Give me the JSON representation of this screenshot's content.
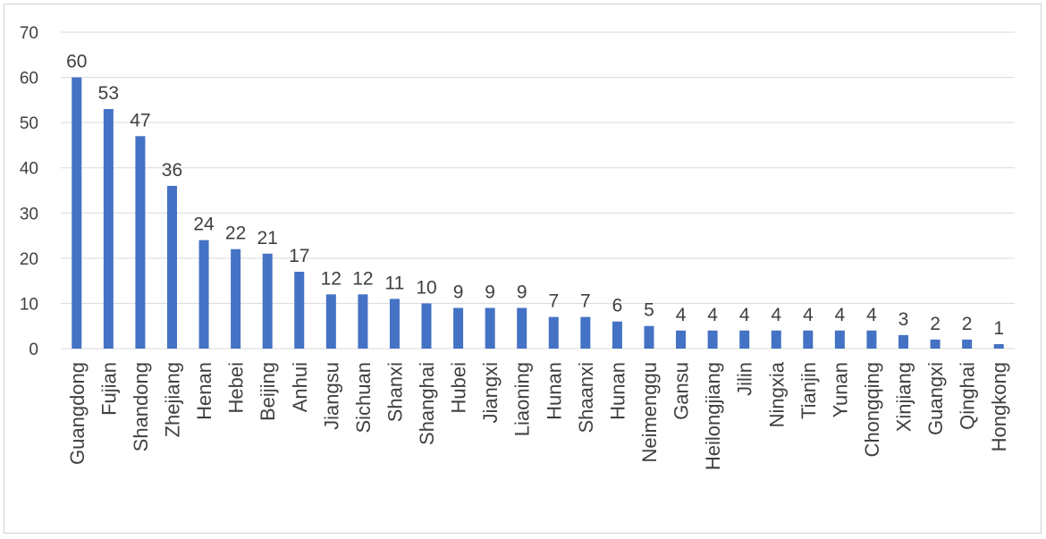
{
  "chart_data": {
    "type": "bar",
    "title": "",
    "xlabel": "",
    "ylabel": "",
    "ylim": [
      0,
      70
    ],
    "yticks": [
      0,
      10,
      20,
      30,
      40,
      50,
      60,
      70
    ],
    "grid": true,
    "legend": "none",
    "colors": {
      "bar": "#4472C4",
      "grid": "#d9d9d9",
      "text": "#404040"
    },
    "categories": [
      "Guangdong",
      "Fujian",
      "Shandong",
      "Zhejiang",
      "Henan",
      "Hebei",
      "Beijing",
      "Anhui",
      "Jiangsu",
      "Sichuan",
      "Shanxi",
      "Shanghai",
      "Hubei",
      "Jiangxi",
      "Liaoning",
      "Hunan",
      "Shaanxi",
      "Hunan",
      "Neimenggu",
      "Gansu",
      "Heilongjiang",
      "Jilin",
      "Ningxia",
      "Tianjin",
      "Yunan",
      "Chongqing",
      "Xinjiang",
      "Guangxi",
      "Qinghai",
      "Hongkong"
    ],
    "values": [
      60,
      53,
      47,
      36,
      24,
      22,
      21,
      17,
      12,
      12,
      11,
      10,
      9,
      9,
      9,
      7,
      7,
      6,
      5,
      4,
      4,
      4,
      4,
      4,
      4,
      4,
      3,
      2,
      2,
      1
    ]
  }
}
